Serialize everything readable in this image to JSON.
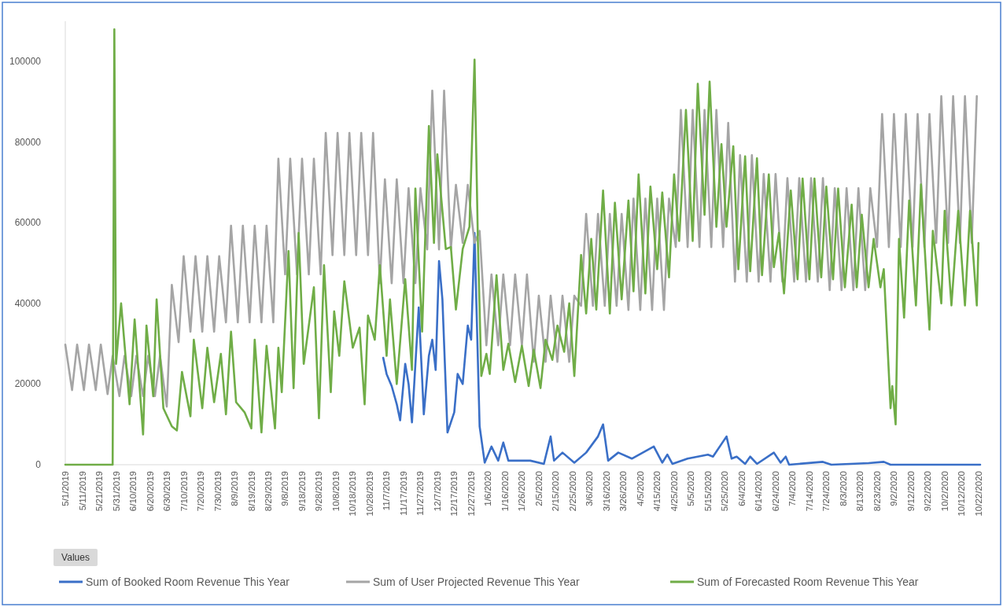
{
  "chart_data": {
    "type": "line",
    "legend": "bottom",
    "legend_title": "Values",
    "grid": false,
    "marker": "none",
    "line_style": "solid",
    "ylim": [
      0,
      110000
    ],
    "yticks": [
      0,
      20000,
      40000,
      60000,
      80000,
      100000
    ],
    "xlim": [
      "2019-05-01",
      "2020-10-23"
    ],
    "xticks": [
      {
        "value": "2019-05-01",
        "label": "5/1/2019"
      },
      {
        "value": "2019-05-11",
        "label": "5/11/2019"
      },
      {
        "value": "2019-05-21",
        "label": "5/21/2019"
      },
      {
        "value": "2019-05-31",
        "label": "5/31/2019"
      },
      {
        "value": "2019-06-10",
        "label": "6/10/2019"
      },
      {
        "value": "2019-06-20",
        "label": "6/20/2019"
      },
      {
        "value": "2019-06-30",
        "label": "6/30/2019"
      },
      {
        "value": "2019-07-10",
        "label": "7/10/2019"
      },
      {
        "value": "2019-07-20",
        "label": "7/20/2019"
      },
      {
        "value": "2019-07-30",
        "label": "7/30/2019"
      },
      {
        "value": "2019-08-09",
        "label": "8/9/2019"
      },
      {
        "value": "2019-08-19",
        "label": "8/19/2019"
      },
      {
        "value": "2019-08-29",
        "label": "8/29/2019"
      },
      {
        "value": "2019-09-08",
        "label": "9/8/2019"
      },
      {
        "value": "2019-09-18",
        "label": "9/18/2019"
      },
      {
        "value": "2019-09-28",
        "label": "9/28/2019"
      },
      {
        "value": "2019-10-08",
        "label": "10/8/2019"
      },
      {
        "value": "2019-10-18",
        "label": "10/18/2019"
      },
      {
        "value": "2019-10-28",
        "label": "10/28/2019"
      },
      {
        "value": "2019-11-07",
        "label": "11/7/2019"
      },
      {
        "value": "2019-11-17",
        "label": "11/17/2019"
      },
      {
        "value": "2019-11-27",
        "label": "11/27/2019"
      },
      {
        "value": "2019-12-07",
        "label": "12/7/2019"
      },
      {
        "value": "2019-12-17",
        "label": "12/17/2019"
      },
      {
        "value": "2019-12-27",
        "label": "12/27/2019"
      },
      {
        "value": "2020-01-06",
        "label": "1/6/2020"
      },
      {
        "value": "2020-01-16",
        "label": "1/16/2020"
      },
      {
        "value": "2020-01-26",
        "label": "1/26/2020"
      },
      {
        "value": "2020-02-05",
        "label": "2/5/2020"
      },
      {
        "value": "2020-02-15",
        "label": "2/15/2020"
      },
      {
        "value": "2020-02-25",
        "label": "2/25/2020"
      },
      {
        "value": "2020-03-06",
        "label": "3/6/2020"
      },
      {
        "value": "2020-03-16",
        "label": "3/16/2020"
      },
      {
        "value": "2020-03-26",
        "label": "3/26/2020"
      },
      {
        "value": "2020-04-05",
        "label": "4/5/2020"
      },
      {
        "value": "2020-04-15",
        "label": "4/15/2020"
      },
      {
        "value": "2020-04-25",
        "label": "4/25/2020"
      },
      {
        "value": "2020-05-05",
        "label": "5/5/2020"
      },
      {
        "value": "2020-05-15",
        "label": "5/15/2020"
      },
      {
        "value": "2020-05-25",
        "label": "5/25/2020"
      },
      {
        "value": "2020-06-04",
        "label": "6/4/2020"
      },
      {
        "value": "2020-06-14",
        "label": "6/14/2020"
      },
      {
        "value": "2020-06-24",
        "label": "6/24/2020"
      },
      {
        "value": "2020-07-04",
        "label": "7/4/2020"
      },
      {
        "value": "2020-07-14",
        "label": "7/14/2020"
      },
      {
        "value": "2020-07-24",
        "label": "7/24/2020"
      },
      {
        "value": "2020-08-03",
        "label": "8/3/2020"
      },
      {
        "value": "2020-08-13",
        "label": "8/13/2020"
      },
      {
        "value": "2020-08-23",
        "label": "8/23/2020"
      },
      {
        "value": "2020-09-02",
        "label": "9/2/2020"
      },
      {
        "value": "2020-09-12",
        "label": "9/12/2020"
      },
      {
        "value": "2020-09-22",
        "label": "9/22/2020"
      },
      {
        "value": "2020-10-02",
        "label": "10/2/2020"
      },
      {
        "value": "2020-10-12",
        "label": "10/12/2020"
      },
      {
        "value": "2020-10-22",
        "label": "10/22/2020"
      }
    ],
    "series": [
      {
        "name": "Sum of Booked Room Revenue This Year",
        "color": "#3a6fc7",
        "x": [
          "2019-11-05",
          "2019-11-07",
          "2019-11-10",
          "2019-11-13",
          "2019-11-15",
          "2019-11-18",
          "2019-11-20",
          "2019-11-22",
          "2019-11-26",
          "2019-11-29",
          "2019-12-02",
          "2019-12-04",
          "2019-12-06",
          "2019-12-08",
          "2019-12-10",
          "2019-12-13",
          "2019-12-17",
          "2019-12-19",
          "2019-12-22",
          "2019-12-25",
          "2019-12-27",
          "2019-12-29",
          "2020-01-01",
          "2020-01-04",
          "2020-01-08",
          "2020-01-12",
          "2020-01-15",
          "2020-01-18",
          "2020-01-31",
          "2020-02-08",
          "2020-02-12",
          "2020-02-14",
          "2020-02-19",
          "2020-02-26",
          "2020-03-04",
          "2020-03-11",
          "2020-03-14",
          "2020-03-17",
          "2020-03-23",
          "2020-03-31",
          "2020-04-13",
          "2020-04-18",
          "2020-04-21",
          "2020-04-24",
          "2020-05-03",
          "2020-05-15",
          "2020-05-18",
          "2020-05-26",
          "2020-05-29",
          "2020-06-01",
          "2020-06-06",
          "2020-06-09",
          "2020-06-13",
          "2020-06-23",
          "2020-06-27",
          "2020-06-30",
          "2020-07-02",
          "2020-07-22",
          "2020-07-27",
          "2020-08-18",
          "2020-08-27",
          "2020-08-31",
          "2020-10-23"
        ],
        "values": [
          26500,
          22500,
          19500,
          15000,
          11000,
          25000,
          20000,
          10500,
          39000,
          12500,
          27000,
          31000,
          23500,
          50500,
          41000,
          8000,
          13000,
          22500,
          20000,
          34500,
          31000,
          57500,
          9500,
          500,
          4500,
          1000,
          5500,
          1000,
          1000,
          200,
          7000,
          1000,
          3000,
          500,
          3000,
          7000,
          10000,
          1000,
          3000,
          1500,
          4500,
          500,
          2500,
          200,
          1500,
          2500,
          2000,
          7000,
          1500,
          2000,
          200,
          2000,
          200,
          3000,
          500,
          2000,
          0,
          700,
          0,
          400,
          700,
          0,
          0
        ]
      },
      {
        "name": "Sum of User Projected Revenue This Year",
        "color": "#a5a5a5",
        "x": [
          "2019-05-01",
          "2019-05-05",
          "2019-05-08",
          "2019-05-12",
          "2019-05-15",
          "2019-05-19",
          "2019-05-22",
          "2019-05-26",
          "2019-05-29",
          "2019-06-02",
          "2019-06-05",
          "2019-06-09",
          "2019-06-12",
          "2019-06-16",
          "2019-06-19",
          "2019-06-23",
          "2019-06-26",
          "2019-06-30",
          "2019-07-03",
          "2019-07-07",
          "2019-07-10",
          "2019-07-14",
          "2019-07-17",
          "2019-07-21",
          "2019-07-24",
          "2019-07-28",
          "2019-07-31",
          "2019-08-04",
          "2019-08-07",
          "2019-08-11",
          "2019-08-14",
          "2019-08-18",
          "2019-08-21",
          "2019-08-25",
          "2019-08-28",
          "2019-09-01",
          "2019-09-04",
          "2019-09-08",
          "2019-09-11",
          "2019-09-15",
          "2019-09-18",
          "2019-09-22",
          "2019-09-25",
          "2019-09-29",
          "2019-10-02",
          "2019-10-06",
          "2019-10-09",
          "2019-10-13",
          "2019-10-16",
          "2019-10-20",
          "2019-10-23",
          "2019-10-27",
          "2019-10-30",
          "2019-11-03",
          "2019-11-06",
          "2019-11-10",
          "2019-11-13",
          "2019-11-17",
          "2019-11-20",
          "2019-11-24",
          "2019-11-27",
          "2019-12-01",
          "2019-12-04",
          "2019-12-08",
          "2019-12-11",
          "2019-12-15",
          "2019-12-18",
          "2019-12-22",
          "2019-12-25",
          "2019-12-29",
          "2020-01-01",
          "2020-01-05",
          "2020-01-08",
          "2020-01-12",
          "2020-01-15",
          "2020-01-19",
          "2020-01-22",
          "2020-01-26",
          "2020-01-29",
          "2020-02-02",
          "2020-02-05",
          "2020-02-09",
          "2020-02-12",
          "2020-02-16",
          "2020-02-19",
          "2020-02-23",
          "2020-02-26",
          "2020-03-01",
          "2020-03-04",
          "2020-03-08",
          "2020-03-11",
          "2020-03-15",
          "2020-03-18",
          "2020-03-22",
          "2020-03-25",
          "2020-03-29",
          "2020-04-01",
          "2020-04-05",
          "2020-04-08",
          "2020-04-12",
          "2020-04-15",
          "2020-04-19",
          "2020-04-22",
          "2020-04-26",
          "2020-04-29",
          "2020-05-03",
          "2020-05-06",
          "2020-05-10",
          "2020-05-13",
          "2020-05-17",
          "2020-05-20",
          "2020-05-24",
          "2020-05-27",
          "2020-05-31",
          "2020-06-03",
          "2020-06-07",
          "2020-06-10",
          "2020-06-14",
          "2020-06-17",
          "2020-06-21",
          "2020-06-24",
          "2020-06-28",
          "2020-07-01",
          "2020-07-05",
          "2020-07-08",
          "2020-07-12",
          "2020-07-15",
          "2020-07-19",
          "2020-07-22",
          "2020-07-26",
          "2020-07-29",
          "2020-08-02",
          "2020-08-05",
          "2020-08-09",
          "2020-08-12",
          "2020-08-16",
          "2020-08-19",
          "2020-08-23",
          "2020-08-26",
          "2020-08-30",
          "2020-09-02",
          "2020-09-06",
          "2020-09-09",
          "2020-09-13",
          "2020-09-16",
          "2020-09-20",
          "2020-09-23",
          "2020-09-27",
          "2020-09-30",
          "2020-10-04",
          "2020-10-07",
          "2020-10-11",
          "2020-10-14",
          "2020-10-18",
          "2020-10-21"
        ],
        "values": [
          29800,
          18500,
          29800,
          18500,
          29800,
          18500,
          29800,
          17500,
          27000,
          17000,
          27000,
          17000,
          27000,
          17000,
          27000,
          17000,
          27000,
          14400,
          44600,
          30400,
          51700,
          33000,
          51700,
          33000,
          51700,
          33000,
          51700,
          35300,
          59300,
          35300,
          59300,
          35300,
          59300,
          35300,
          59300,
          35300,
          75900,
          47200,
          75900,
          47200,
          75900,
          47200,
          75900,
          47200,
          82300,
          52000,
          82300,
          52000,
          82300,
          52000,
          82300,
          52000,
          82300,
          45000,
          70800,
          45000,
          70800,
          45000,
          68600,
          45000,
          68600,
          53400,
          92800,
          53400,
          92800,
          53400,
          69400,
          55000,
          69400,
          55000,
          58000,
          29600,
          47200,
          29600,
          47200,
          29600,
          47200,
          29600,
          47200,
          25500,
          41900,
          25500,
          41900,
          25500,
          41900,
          25500,
          41900,
          39400,
          62200,
          39400,
          62200,
          39400,
          62200,
          39400,
          62200,
          38400,
          66000,
          38400,
          66000,
          38400,
          66000,
          38400,
          66000,
          54000,
          88000,
          54000,
          88000,
          54000,
          88000,
          54000,
          88000,
          54000,
          84800,
          45400,
          76800,
          45400,
          76800,
          45400,
          72100,
          45400,
          72100,
          45400,
          71100,
          45400,
          71100,
          45400,
          71100,
          45400,
          71100,
          43300,
          68600,
          43300,
          68600,
          43300,
          68600,
          43300,
          68600,
          54000,
          87000,
          54000,
          87000,
          54000,
          87000,
          54000,
          87000,
          54000,
          87000,
          55000,
          91400,
          55000,
          91400,
          55000,
          91400,
          55000,
          91400
        ]
      },
      {
        "name": "Sum of Forecasted Room Revenue This Year",
        "color": "#70ad47",
        "x": [
          "2019-05-01",
          "2019-05-29",
          "2019-05-30",
          "2019-05-31",
          "2019-06-03",
          "2019-06-08",
          "2019-06-11",
          "2019-06-16",
          "2019-06-18",
          "2019-06-22",
          "2019-06-24",
          "2019-06-28",
          "2019-07-03",
          "2019-07-06",
          "2019-07-09",
          "2019-07-14",
          "2019-07-16",
          "2019-07-21",
          "2019-07-24",
          "2019-07-28",
          "2019-08-01",
          "2019-08-04",
          "2019-08-07",
          "2019-08-10",
          "2019-08-15",
          "2019-08-19",
          "2019-08-21",
          "2019-08-25",
          "2019-08-28",
          "2019-09-02",
          "2019-09-04",
          "2019-09-06",
          "2019-09-10",
          "2019-09-13",
          "2019-09-16",
          "2019-09-19",
          "2019-09-25",
          "2019-09-28",
          "2019-10-01",
          "2019-10-05",
          "2019-10-07",
          "2019-10-10",
          "2019-10-13",
          "2019-10-18",
          "2019-10-22",
          "2019-10-25",
          "2019-10-27",
          "2019-10-31",
          "2019-11-03",
          "2019-11-07",
          "2019-11-09",
          "2019-11-13",
          "2019-11-18",
          "2019-11-22",
          "2019-11-24",
          "2019-11-28",
          "2019-12-02",
          "2019-12-05",
          "2019-12-07",
          "2019-12-12",
          "2019-12-15",
          "2019-12-18",
          "2019-12-22",
          "2019-12-26",
          "2019-12-29",
          "2019-12-31",
          "2020-01-02",
          "2020-01-05",
          "2020-01-07",
          "2020-01-11",
          "2020-01-15",
          "2020-01-18",
          "2020-01-22",
          "2020-01-26",
          "2020-01-30",
          "2020-02-02",
          "2020-02-06",
          "2020-02-09",
          "2020-02-13",
          "2020-02-16",
          "2020-02-20",
          "2020-02-23",
          "2020-02-26",
          "2020-03-01",
          "2020-03-04",
          "2020-03-07",
          "2020-03-10",
          "2020-03-14",
          "2020-03-18",
          "2020-03-21",
          "2020-03-25",
          "2020-03-29",
          "2020-04-01",
          "2020-04-04",
          "2020-04-08",
          "2020-04-11",
          "2020-04-15",
          "2020-04-18",
          "2020-04-22",
          "2020-04-25",
          "2020-04-28",
          "2020-05-02",
          "2020-05-06",
          "2020-05-09",
          "2020-05-13",
          "2020-05-16",
          "2020-05-20",
          "2020-05-23",
          "2020-05-26",
          "2020-05-30",
          "2020-06-02",
          "2020-06-06",
          "2020-06-09",
          "2020-06-13",
          "2020-06-16",
          "2020-06-20",
          "2020-06-23",
          "2020-06-26",
          "2020-06-29",
          "2020-07-03",
          "2020-07-07",
          "2020-07-10",
          "2020-07-14",
          "2020-07-17",
          "2020-07-21",
          "2020-07-24",
          "2020-07-28",
          "2020-07-31",
          "2020-08-04",
          "2020-08-08",
          "2020-08-11",
          "2020-08-14",
          "2020-08-18",
          "2020-08-21",
          "2020-08-25",
          "2020-08-27",
          "2020-08-31",
          "2020-09-01",
          "2020-09-03",
          "2020-09-05",
          "2020-09-08",
          "2020-09-11",
          "2020-09-15",
          "2020-09-18",
          "2020-09-23",
          "2020-09-25",
          "2020-09-30",
          "2020-10-02",
          "2020-10-06",
          "2020-10-10",
          "2020-10-14",
          "2020-10-17",
          "2020-10-21",
          "2020-10-22"
        ],
        "values": [
          0,
          0,
          108000,
          25000,
          40000,
          15000,
          36000,
          7500,
          34500,
          17000,
          41000,
          14000,
          9500,
          8500,
          23000,
          12000,
          31000,
          14000,
          29000,
          15500,
          27500,
          12500,
          33000,
          15500,
          13000,
          9000,
          31000,
          8000,
          29500,
          9000,
          29000,
          18000,
          53000,
          19000,
          57500,
          25000,
          44000,
          11500,
          49500,
          18000,
          38000,
          27000,
          45500,
          29000,
          34000,
          15000,
          37000,
          31000,
          49500,
          27000,
          41000,
          20000,
          46000,
          23500,
          68500,
          33000,
          84000,
          55000,
          77000,
          53500,
          54000,
          38500,
          53500,
          59000,
          100500,
          55000,
          22000,
          27500,
          22500,
          47000,
          23500,
          30000,
          20500,
          29500,
          19500,
          28500,
          19000,
          31000,
          26000,
          34500,
          28000,
          40000,
          22000,
          52000,
          37500,
          56000,
          38500,
          68000,
          37500,
          65000,
          41000,
          65500,
          43000,
          72000,
          42500,
          69000,
          48500,
          67500,
          46500,
          72000,
          55500,
          88000,
          55500,
          94500,
          62000,
          95000,
          59000,
          79500,
          59000,
          79000,
          48500,
          76500,
          48000,
          76000,
          47000,
          72000,
          49000,
          57500,
          42500,
          68000,
          46000,
          71000,
          46000,
          71000,
          46500,
          69000,
          46000,
          68500,
          44000,
          64500,
          44000,
          62000,
          44000,
          56000,
          44000,
          48500,
          14000,
          19500,
          10000,
          56000,
          36500,
          65500,
          39500,
          69500,
          33500,
          58000,
          40000,
          63000,
          39500,
          63000,
          39500,
          63000,
          39500,
          55000
        ]
      }
    ]
  }
}
